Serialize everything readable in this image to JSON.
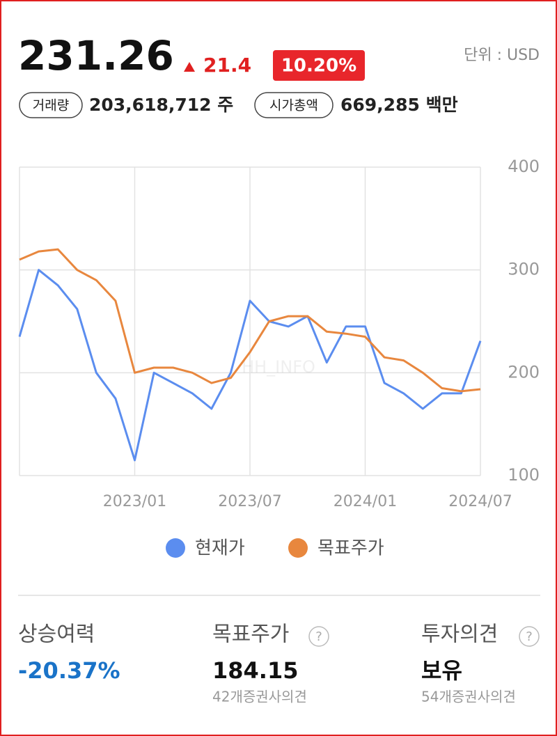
{
  "header": {
    "price": "231.26",
    "change": "21.4",
    "change_pct": "10.20%",
    "unit": "단위 : USD",
    "volume_label": "거래량",
    "volume": "203,618,712 주",
    "market_cap_label": "시가총액",
    "market_cap": "669,285 백만"
  },
  "chart_data": {
    "type": "line",
    "categories": [
      null,
      null,
      null,
      null,
      null,
      null,
      "2023/01",
      null,
      null,
      null,
      null,
      null,
      "2023/07",
      null,
      null,
      null,
      null,
      null,
      "2024/01",
      null,
      null,
      null,
      null,
      null,
      "2024/07"
    ],
    "series": [
      {
        "name": "현재가",
        "color": "#5b8def",
        "values": [
          235,
          300,
          285,
          262,
          200,
          175,
          115,
          200,
          190,
          180,
          165,
          200,
          270,
          250,
          245,
          255,
          210,
          245,
          245,
          190,
          180,
          165,
          180,
          180,
          231
        ]
      },
      {
        "name": "목표주가",
        "color": "#e8873e",
        "values": [
          310,
          318,
          320,
          300,
          290,
          270,
          200,
          205,
          205,
          200,
          190,
          195,
          220,
          250,
          255,
          255,
          240,
          238,
          235,
          215,
          212,
          200,
          185,
          182,
          184
        ]
      }
    ],
    "ylim": [
      100,
      400
    ],
    "yticks": [
      100,
      200,
      300,
      400
    ],
    "grid": true,
    "watermark": "HH_INFO"
  },
  "summary": [
    {
      "label": "상승여력",
      "value": "-20.37%"
    },
    {
      "label": "목표주가",
      "value": "184.15",
      "note": "42개증권사의견"
    },
    {
      "label": "투자의견",
      "value": "보유",
      "note": "54개증권사의견"
    }
  ]
}
